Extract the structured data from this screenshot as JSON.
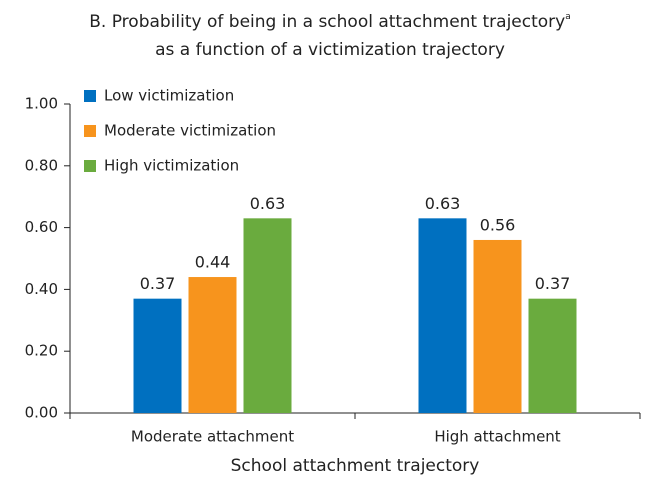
{
  "chart_data": {
    "type": "bar",
    "title": [
      "B. Probability of being in a school attachment trajectory",
      "as a function of a victimization trajectory"
    ],
    "title_superscript": "a",
    "xlabel": "School attachment trajectory",
    "categories": [
      "Moderate attachment",
      "High attachment"
    ],
    "series": [
      {
        "name": "Low victimization",
        "color": "#0070c0",
        "values": [
          0.37,
          0.63
        ]
      },
      {
        "name": "Moderate victimization",
        "color": "#f7941d",
        "values": [
          0.44,
          0.56
        ]
      },
      {
        "name": "High victimization",
        "color": "#6aab3e",
        "values": [
          0.63,
          0.37
        ]
      }
    ],
    "ylim": [
      0,
      1
    ],
    "yticks": [
      {
        "value": 0,
        "label": "0.00"
      },
      {
        "value": 0.2,
        "label": "0.20"
      },
      {
        "value": 0.4,
        "label": "0.40"
      },
      {
        "value": 0.6,
        "label": "0.60"
      },
      {
        "value": 0.8,
        "label": "0.80"
      },
      {
        "value": 1,
        "label": "1.00"
      }
    ],
    "legend": "upper left",
    "grid": false
  }
}
